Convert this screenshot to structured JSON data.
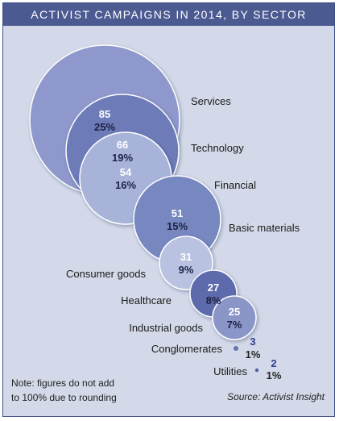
{
  "title": "ACTIVIST CAMPAIGNS IN 2014, BY SECTOR",
  "note": {
    "line1": "Note: figures do not add",
    "line2": "to 100% due to rounding"
  },
  "source": "Source: Activist Insight",
  "colors": {
    "frame_border": "#3f4f86",
    "background": "#d3d9e8",
    "title_bar": "#4c5a92",
    "small_value_text": "#2e3f8a"
  },
  "chart_data": {
    "type": "bubble",
    "title": "ACTIVIST CAMPAIGNS IN 2014, BY SECTOR",
    "series": [
      {
        "sector": "Services",
        "count": "85",
        "share": "25%",
        "value": 85,
        "color": "#8f98cc"
      },
      {
        "sector": "Technology",
        "count": "66",
        "share": "19%",
        "value": 66,
        "color": "#6d7bb8"
      },
      {
        "sector": "Financial",
        "count": "54",
        "share": "16%",
        "value": 54,
        "color": "#a7b3d9"
      },
      {
        "sector": "Basic materials",
        "count": "51",
        "share": "15%",
        "value": 51,
        "color": "#7787c0"
      },
      {
        "sector": "Consumer goods",
        "count": "31",
        "share": "9%",
        "value": 31,
        "color": "#b9c2e1"
      },
      {
        "sector": "Healthcare",
        "count": "27",
        "share": "8%",
        "value": 27,
        "color": "#5d6bac"
      },
      {
        "sector": "Industrial goods",
        "count": "25",
        "share": "7%",
        "value": 25,
        "color": "#8a96c8"
      },
      {
        "sector": "Conglomerates",
        "count": "3",
        "share": "1%",
        "value": 3,
        "color": "#6473b3"
      },
      {
        "sector": "Utilities",
        "count": "2",
        "share": "1%",
        "value": 2,
        "color": "#4f5fa6"
      }
    ]
  }
}
